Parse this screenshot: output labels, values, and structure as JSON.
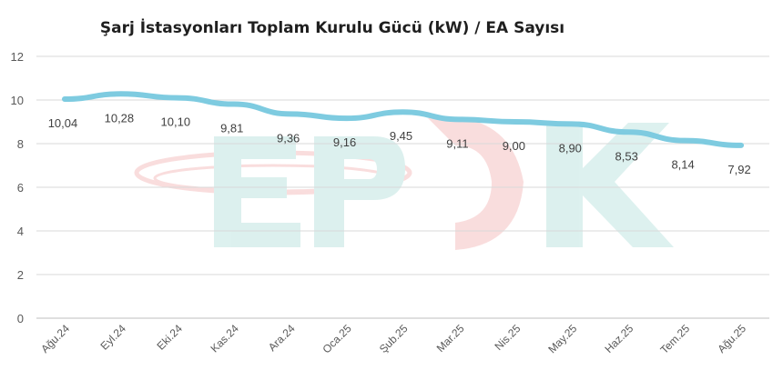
{
  "chart_data": {
    "type": "line",
    "title": "Şarj İstasyonları Toplam Kurulu Gücü (kW) / EA Sayısı",
    "watermark": "EPDK",
    "categories": [
      "Ağu.24",
      "Eyl.24",
      "Eki.24",
      "Kas.24",
      "Ara.24",
      "Oca.25",
      "Şub.25",
      "Mar.25",
      "Nis.25",
      "May.25",
      "Haz.25",
      "Tem.25",
      "Ağu.25"
    ],
    "series": [
      {
        "values": [
          10.04,
          10.28,
          10.1,
          9.81,
          9.36,
          9.16,
          9.45,
          9.11,
          9.0,
          8.9,
          8.53,
          8.14,
          7.92
        ],
        "labels": [
          "10,04",
          "10,28",
          "10,10",
          "9,81",
          "9,36",
          "9,16",
          "9,45",
          "9,11",
          "9,00",
          "8,90",
          "8,53",
          "8,14",
          "7,92"
        ],
        "color": "#7ecbe0"
      }
    ],
    "ylim": [
      0,
      12
    ],
    "yticks": [
      0,
      2,
      4,
      6,
      8,
      10,
      12
    ],
    "grid": true,
    "legend": "none"
  }
}
